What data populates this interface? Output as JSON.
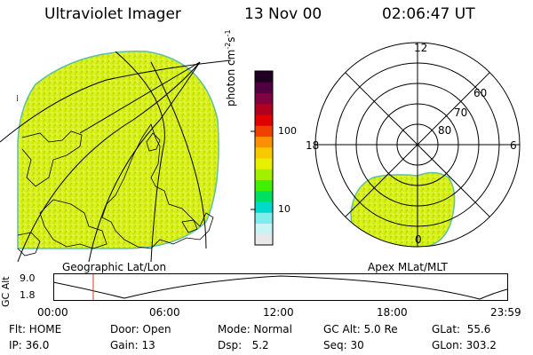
{
  "header": {
    "instrument": "Ultraviolet Imager",
    "date": "13 Nov 00",
    "time": "02:06:47 UT"
  },
  "geo_panel": {
    "label": "Geographic Lat/Lon"
  },
  "polar_panel": {
    "label": "Apex MLat/MLT",
    "mlt_labels": {
      "top": "12",
      "left": "18",
      "right": "6",
      "bottom": "0"
    },
    "lat_labels": [
      "60",
      "70",
      "80"
    ]
  },
  "colorbar": {
    "unit_label": "photon cm",
    "unit_sup1": "-2",
    "unit_mid": "s",
    "unit_sup2": "-1",
    "tick_100": "100",
    "tick_10": "10",
    "colors": [
      "#e8e8e8",
      "#c8f4f4",
      "#80ecec",
      "#00d8c8",
      "#00e060",
      "#40f000",
      "#a0f000",
      "#e8f000",
      "#f8c800",
      "#f89000",
      "#f04000",
      "#e00000",
      "#b00020",
      "#800040",
      "#500040",
      "#200020"
    ]
  },
  "altitude_plot": {
    "ylabel": "GC Alt",
    "y_max_label": "9.0",
    "y_min_label": "1.8",
    "x_ticks": [
      "00:00",
      "06:00",
      "12:00",
      "18:00",
      "23:59"
    ],
    "current_time_fraction": 0.088
  },
  "status": {
    "flt": "Flt: HOME",
    "ip": "IP: 36.0",
    "door": "Door: Open",
    "gain": "Gain: 13",
    "mode": "Mode: Normal",
    "dsp": "Dsp:   5.2",
    "gc_alt": "GC Alt: 5.0 Re",
    "seq": "Seq: 30",
    "glat": "GLat:  55.6",
    "glon": "GLon: 303.2"
  }
}
